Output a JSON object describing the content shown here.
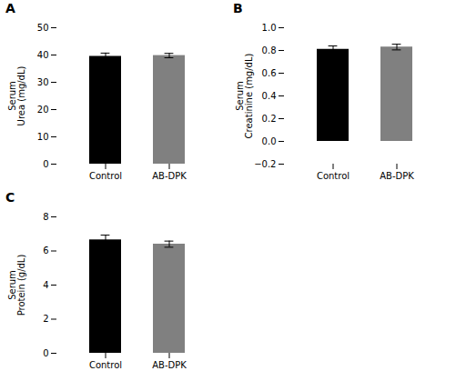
{
  "chart_data": [
    {
      "type": "bar",
      "title": "A",
      "categories": [
        "Control",
        "AB-DPK"
      ],
      "values": [
        39.5,
        39.8
      ],
      "errors": [
        1.2,
        0.8
      ],
      "colors": [
        "#000000",
        "#808080"
      ],
      "error_color": "#000000",
      "ylabel": "Serum\nUrea (mg/dL)",
      "ylim": [
        0,
        50
      ],
      "yticks": [
        0,
        10,
        20,
        30,
        40,
        50
      ],
      "grid": false
    },
    {
      "type": "bar",
      "title": "B",
      "categories": [
        "Control",
        "AB-DPK"
      ],
      "values": [
        0.81,
        0.83
      ],
      "errors": [
        0.03,
        0.025
      ],
      "colors": [
        "#000000",
        "#808080"
      ],
      "error_color": "#000000",
      "ylabel": "Serum\nCreatinine (mg/dL)",
      "ylim": [
        -0.2,
        1.0
      ],
      "yticks": [
        {
          "value": -0.2,
          "label": "−0.2"
        },
        {
          "value": 0,
          "label": "0.0"
        },
        0.2,
        0.4,
        0.6,
        0.8,
        {
          "value": 1,
          "label": "1.0"
        }
      ],
      "grid": false
    },
    {
      "type": "bar",
      "title": "C",
      "categories": [
        "Control",
        "AB-DPK"
      ],
      "values": [
        6.65,
        6.4
      ],
      "errors": [
        0.28,
        0.18
      ],
      "colors": [
        "#000000",
        "#808080"
      ],
      "error_color": "#000000",
      "ylabel": "Serum\nProtein (g/dL)",
      "ylim": [
        0,
        8
      ],
      "yticks": [
        0,
        2,
        4,
        6,
        8
      ],
      "grid": false
    }
  ]
}
